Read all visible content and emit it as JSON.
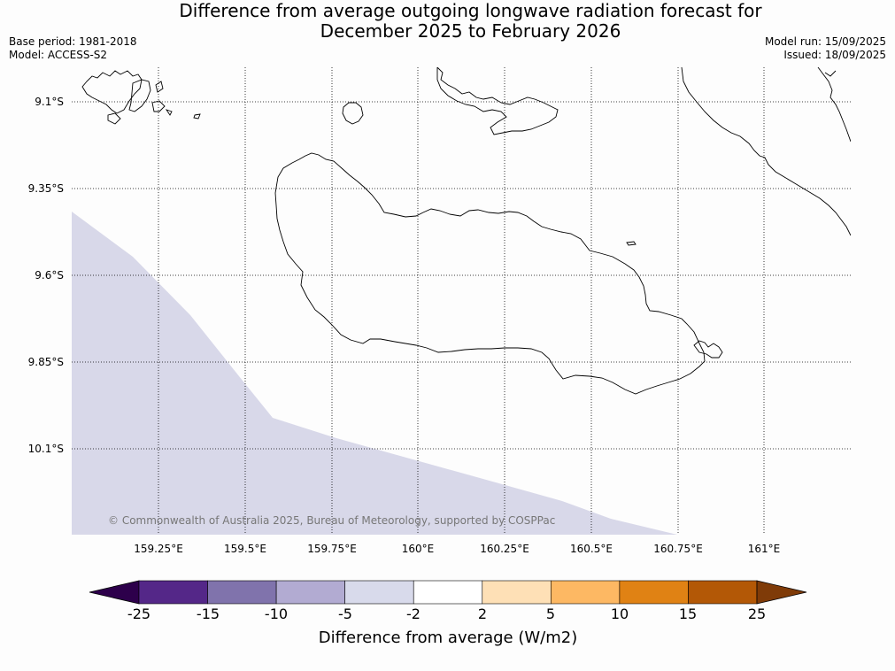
{
  "title": {
    "line1": "Difference from average outgoing longwave radiation forecast for",
    "line2": "December 2025 to February 2026"
  },
  "meta_left": {
    "base_period": "Base period: 1981-2018",
    "model": "Model: ACCESS-S2"
  },
  "meta_right": {
    "model_run": "Model run: 15/09/2025",
    "issued": "Issued: 18/09/2025"
  },
  "map": {
    "lon_labels": [
      "159.25°E",
      "159.5°E",
      "159.75°E",
      "160°E",
      "160.25°E",
      "160.5°E",
      "160.75°E",
      "161°E"
    ],
    "lat_labels": [
      "9.1°S",
      "9.35°S",
      "9.6°S",
      "9.85°S",
      "10.1°S"
    ],
    "copyright": "© Commonwealth of Australia 2025, Bureau of Meteorology, supported by COSPPac",
    "anomaly_region": {
      "category": "-5 to -2",
      "color": "#d8d8e9"
    }
  },
  "colorbar": {
    "tick_labels": [
      "-25",
      "-15",
      "-10",
      "-5",
      "-2",
      "2",
      "5",
      "10",
      "15",
      "25"
    ],
    "colors": {
      "under": "#2d004b",
      "bins": [
        "#542788",
        "#8073ac",
        "#b2abd2",
        "#d8daeb",
        "#ffffff",
        "#fee0b6",
        "#fdb863",
        "#e08214",
        "#b35806"
      ],
      "over": "#7f3b08"
    },
    "label": "Difference from average (W/m2)"
  }
}
